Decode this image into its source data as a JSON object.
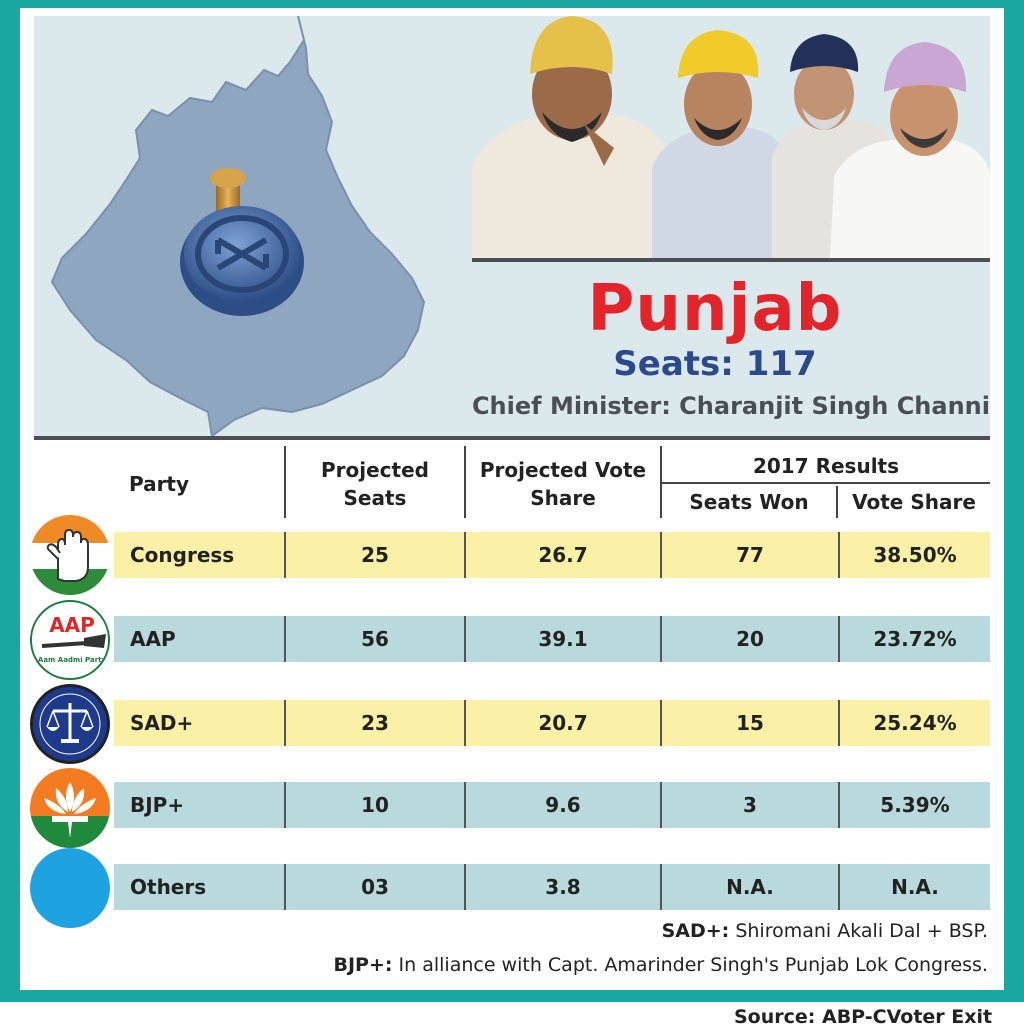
{
  "header": {
    "title": "Punjab",
    "seats": "Seats: 117",
    "chief_minister": "Chief Minister: Charanjit Singh Channi"
  },
  "table": {
    "columns": {
      "party": "Party",
      "projected_seats": "Projected Seats",
      "projected_vote_share": "Projected Vote Share",
      "group_2017": "2017 Results",
      "seats_won": "Seats Won",
      "vote_share": "Vote Share"
    },
    "rows": [
      {
        "party": "Congress",
        "projected_seats": "25",
        "projected_vote_share": "26.7",
        "seats_won": "77",
        "vote_share": "38.50%",
        "logo_icon": "congress-hand-icon"
      },
      {
        "party": "AAP",
        "projected_seats": "56",
        "projected_vote_share": "39.1",
        "seats_won": "20",
        "vote_share": "23.72%",
        "logo_icon": "aap-broom-icon"
      },
      {
        "party": "SAD+",
        "projected_seats": "23",
        "projected_vote_share": "20.7",
        "seats_won": "15",
        "vote_share": "25.24%",
        "logo_icon": "sad-scales-icon"
      },
      {
        "party": "BJP+",
        "projected_seats": "10",
        "projected_vote_share": "9.6",
        "seats_won": "3",
        "vote_share": "5.39%",
        "logo_icon": "bjp-lotus-icon"
      },
      {
        "party": "Others",
        "projected_seats": "03",
        "projected_vote_share": "3.8",
        "seats_won": "N.A.",
        "vote_share": "N.A.",
        "logo_icon": "others-circle-icon"
      }
    ]
  },
  "logos": {
    "aap_text": "AAP",
    "aap_name": "Aam Aadmi Party"
  },
  "footnotes": {
    "sad_label": "SAD+:",
    "sad_text": "Shiromani Akali Dal + BSP.",
    "bjp_label": "BJP+:",
    "bjp_text": "In alliance with Capt. Amarinder Singh's Punjab Lok Congress."
  },
  "source": "Source: ABP-CVoter Exit Poll",
  "colors": {
    "frame": "#19a79f",
    "hero_bg": "#dce9ec",
    "title": "#e3242b",
    "seats": "#2b4a8c",
    "row_yellow": "#faf0a6",
    "row_teal": "#b9dadd",
    "map": "#8fa6c0"
  },
  "chart_data": {
    "type": "table",
    "title": "Punjab",
    "subtitle": "Seats: 117",
    "columns": [
      "Party",
      "Projected Seats",
      "Projected Vote Share",
      "2017 Results: Seats Won",
      "2017 Results: Vote Share"
    ],
    "rows": [
      [
        "Congress",
        "25",
        "26.7",
        "77",
        "38.50%"
      ],
      [
        "AAP",
        "56",
        "39.1",
        "20",
        "23.72%"
      ],
      [
        "SAD+",
        "23",
        "20.7",
        "15",
        "25.24%"
      ],
      [
        "BJP+",
        "10",
        "9.6",
        "3",
        "5.39%"
      ],
      [
        "Others",
        "03",
        "3.8",
        "N.A.",
        "N.A."
      ]
    ]
  }
}
